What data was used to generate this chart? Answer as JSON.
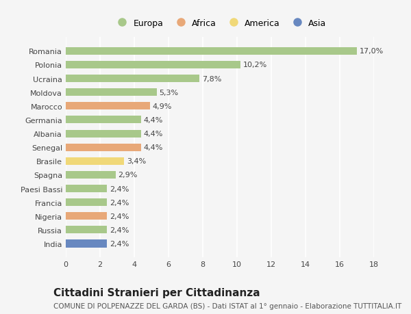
{
  "countries": [
    "Romania",
    "Polonia",
    "Ucraina",
    "Moldova",
    "Marocco",
    "Germania",
    "Albania",
    "Senegal",
    "Brasile",
    "Spagna",
    "Paesi Bassi",
    "Francia",
    "Nigeria",
    "Russia",
    "India"
  ],
  "values": [
    17.0,
    10.2,
    7.8,
    5.3,
    4.9,
    4.4,
    4.4,
    4.4,
    3.4,
    2.9,
    2.4,
    2.4,
    2.4,
    2.4,
    2.4
  ],
  "continents": [
    "Europa",
    "Europa",
    "Europa",
    "Europa",
    "Africa",
    "Europa",
    "Europa",
    "Africa",
    "America",
    "Europa",
    "Europa",
    "Europa",
    "Africa",
    "Europa",
    "Asia"
  ],
  "colors": {
    "Europa": "#a8c88a",
    "Africa": "#e8a878",
    "America": "#f0d878",
    "Asia": "#6888c0"
  },
  "title": "Cittadini Stranieri per Cittadinanza",
  "subtitle": "COMUNE DI POLPENAZZE DEL GARDA (BS) - Dati ISTAT al 1° gennaio - Elaborazione TUTTITALIA.IT",
  "xlim": [
    0,
    18
  ],
  "xticks": [
    0,
    2,
    4,
    6,
    8,
    10,
    12,
    14,
    16,
    18
  ],
  "background_color": "#f5f5f5",
  "grid_color": "#ffffff",
  "bar_height": 0.55,
  "label_fontsize": 8,
  "title_fontsize": 11,
  "subtitle_fontsize": 7.5,
  "legend_fontsize": 9,
  "tick_fontsize": 8
}
